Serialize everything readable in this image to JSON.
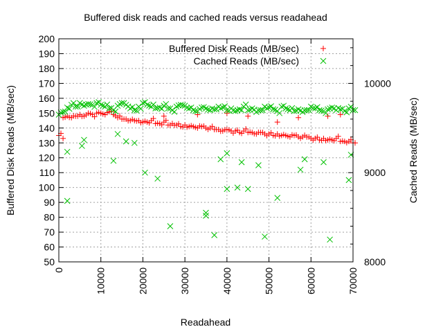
{
  "chart_data": {
    "type": "scatter",
    "title": "Buffered disk reads and cached reads versus readahead",
    "xlabel": "Readahead",
    "ylabel": "Buffered Disk Reads (MB/sec)",
    "y2label": "Cached Reads (MB/sec)",
    "xlim": [
      0,
      70000
    ],
    "ylim": [
      50,
      200
    ],
    "y2lim": [
      8000,
      10500
    ],
    "xticks": [
      0,
      10000,
      20000,
      30000,
      40000,
      50000,
      60000,
      70000
    ],
    "yticks": [
      50,
      60,
      70,
      80,
      90,
      100,
      110,
      120,
      130,
      140,
      150,
      160,
      170,
      180,
      190,
      200
    ],
    "y2ticks": [
      8000,
      9000,
      10000
    ],
    "grid": true,
    "legend_position": "top-right",
    "series": [
      {
        "name": "Buffered Disk Reads (MB/sec)",
        "axis": "y",
        "marker": "plus",
        "color": "#ff0000",
        "x_start": 0,
        "x_step": 1000,
        "values": [
          135,
          147,
          148,
          147,
          148,
          149,
          148,
          150,
          149,
          150,
          150,
          149,
          151,
          149,
          147,
          146,
          146,
          145,
          145,
          145,
          144,
          144,
          145,
          143,
          143,
          144,
          142,
          143,
          142,
          141,
          142,
          141,
          141,
          140,
          141,
          140,
          140,
          139,
          139,
          138,
          139,
          138,
          138,
          137,
          138,
          137,
          137,
          136,
          137,
          136,
          136,
          135,
          136,
          135,
          135,
          134,
          135,
          134,
          134,
          134,
          133,
          133,
          132,
          133,
          132,
          132,
          133,
          131,
          131,
          131,
          130
        ],
        "extra_points": [
          [
            1000,
            133
          ],
          [
            25000,
            148
          ],
          [
            33000,
            149
          ],
          [
            40000,
            150
          ],
          [
            45000,
            148
          ],
          [
            52000,
            144
          ],
          [
            57000,
            147
          ],
          [
            64000,
            148
          ],
          [
            67000,
            149
          ]
        ]
      },
      {
        "name": "Cached Reads (MB/sec)",
        "axis": "y2",
        "marker": "cross",
        "color": "#00c000",
        "x_start": 0,
        "x_step": 1000,
        "values": [
          9650,
          9680,
          9730,
          9760,
          9740,
          9780,
          9750,
          9770,
          9760,
          9780,
          9760,
          9740,
          9720,
          9700,
          9750,
          9780,
          9760,
          9720,
          9700,
          9740,
          9780,
          9760,
          9740,
          9720,
          9730,
          9750,
          9720,
          9700,
          9740,
          9760,
          9750,
          9720,
          9700,
          9690,
          9730,
          9720,
          9700,
          9710,
          9740,
          9730,
          9700,
          9720,
          9690,
          9710,
          9740,
          9700,
          9720,
          9680,
          9700,
          9740,
          9730,
          9710,
          9690,
          9740,
          9720,
          9700,
          9690,
          9710,
          9680,
          9700,
          9740,
          9720,
          9700,
          9690,
          9710,
          9730,
          9700,
          9710,
          9690,
          9720,
          9700
        ],
        "extra_points": [
          [
            2000,
            9233
          ],
          [
            2000,
            8683
          ],
          [
            5500,
            9300
          ],
          [
            6000,
            9367
          ],
          [
            13000,
            9133
          ],
          [
            14000,
            9433
          ],
          [
            16000,
            9350
          ],
          [
            18000,
            9333
          ],
          [
            20500,
            9000
          ],
          [
            23500,
            8933
          ],
          [
            26500,
            8400
          ],
          [
            35000,
            8550
          ],
          [
            35000,
            8517
          ],
          [
            37000,
            8300
          ],
          [
            38500,
            9150
          ],
          [
            40000,
            8817
          ],
          [
            40000,
            9217
          ],
          [
            42500,
            8833
          ],
          [
            43500,
            9117
          ],
          [
            45000,
            8817
          ],
          [
            47500,
            9083
          ],
          [
            49000,
            8283
          ],
          [
            52000,
            8717
          ],
          [
            57500,
            9033
          ],
          [
            58500,
            9150
          ],
          [
            63000,
            9117
          ],
          [
            64500,
            8250
          ],
          [
            69000,
            8917
          ],
          [
            69500,
            9200
          ]
        ]
      }
    ]
  }
}
